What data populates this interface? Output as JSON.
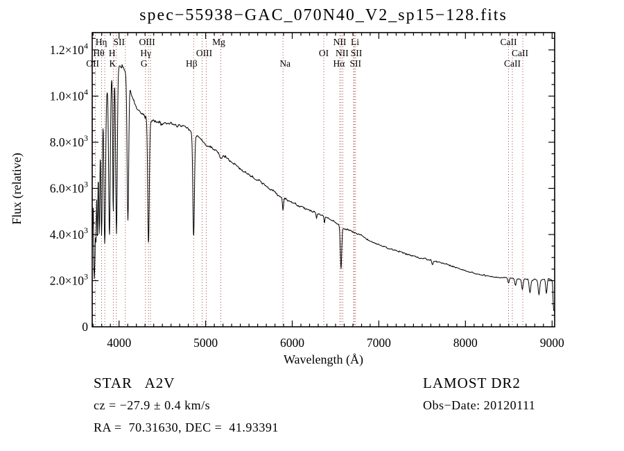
{
  "title": "spec−55938−GAC_070N40_V2_sp15−128.fits",
  "annotations": {
    "object_class": "STAR   A2V",
    "survey": "LAMOST DR2",
    "cz": "cz = −27.9 ± 0.4 km/s",
    "obs_date": "Obs−Date: 20120111",
    "ra_dec": "RA =  70.31630, DEC =  41.93391"
  },
  "chart_data": {
    "type": "line",
    "title": "spec−55938−GAC_070N40_V2_sp15−128.fits",
    "xlabel": "Wavelength (Å)",
    "ylabel": "Flux (relative)",
    "xlim": [
      3690,
      9030
    ],
    "ylim": [
      0,
      12750
    ],
    "x_major_ticks": [
      4000,
      5000,
      6000,
      7000,
      8000,
      9000
    ],
    "x_minor_step": 100,
    "y_major_ticks": [
      {
        "value": 0,
        "mantissa": "0",
        "exponent": ""
      },
      {
        "value": 2000,
        "mantissa": "2.0×10",
        "exponent": "3"
      },
      {
        "value": 4000,
        "mantissa": "4.0×10",
        "exponent": "3"
      },
      {
        "value": 6000,
        "mantissa": "6.0×10",
        "exponent": "3"
      },
      {
        "value": 8000,
        "mantissa": "8.0×10",
        "exponent": "3"
      },
      {
        "value": 10000,
        "mantissa": "1.0×10",
        "exponent": "4"
      },
      {
        "value": 12000,
        "mantissa": "1.2×10",
        "exponent": "4"
      }
    ],
    "y_minor_step": 500,
    "grid": false,
    "legend": "none",
    "colors": {
      "spectrum": "#000000",
      "markers": "#a34646",
      "axes": "#000000"
    },
    "marker_lines": [
      3727,
      3798,
      3835,
      3933,
      3969,
      4072,
      4305,
      4340,
      4363,
      4861,
      4959,
      5007,
      5175,
      5893,
      6364,
      6548,
      6563,
      6583,
      6708,
      6716,
      6731,
      8498,
      8542,
      8662
    ],
    "marker_labels": [
      {
        "text": "Hη",
        "wavelength": 3835,
        "row": 1,
        "dx": -5
      },
      {
        "text": "SII",
        "wavelength": 4072,
        "row": 1,
        "dx": -9
      },
      {
        "text": "OIII",
        "wavelength": 4363,
        "row": 1,
        "dx": -5
      },
      {
        "text": "Mg",
        "wavelength": 5175,
        "row": 1,
        "dx": -3
      },
      {
        "text": "NII",
        "wavelength": 6548,
        "row": 1,
        "dx": 0
      },
      {
        "text": "Li",
        "wavelength": 6708,
        "row": 1,
        "dx": 2
      },
      {
        "text": "CaII",
        "wavelength": 8498,
        "row": 1,
        "dx": 0
      },
      {
        "text": "Hθ",
        "wavelength": 3798,
        "row": 2,
        "dx": -4
      },
      {
        "text": "H",
        "wavelength": 3969,
        "row": 2,
        "dx": -6
      },
      {
        "text": "Hγ",
        "wavelength": 4340,
        "row": 2,
        "dx": -4
      },
      {
        "text": "OIII",
        "wavelength": 4983,
        "row": 2,
        "dx": 0
      },
      {
        "text": "OI",
        "wavelength": 6364,
        "row": 2,
        "dx": 0
      },
      {
        "text": "NII",
        "wavelength": 6583,
        "row": 2,
        "dx": -1
      },
      {
        "text": "SII",
        "wavelength": 6716,
        "row": 2,
        "dx": 3
      },
      {
        "text": "CaII",
        "wavelength": 8542,
        "row": 2,
        "dx": 11
      },
      {
        "text": "OII",
        "wavelength": 3727,
        "row": 3,
        "dx": -4
      },
      {
        "text": "K",
        "wavelength": 3933,
        "row": 3,
        "dx": -1
      },
      {
        "text": "G",
        "wavelength": 4305,
        "row": 3,
        "dx": -2
      },
      {
        "text": "Hβ",
        "wavelength": 4861,
        "row": 3,
        "dx": -3
      },
      {
        "text": "Na",
        "wavelength": 5893,
        "row": 3,
        "dx": 3
      },
      {
        "text": "Hα",
        "wavelength": 6563,
        "row": 3,
        "dx": -3
      },
      {
        "text": "SII",
        "wavelength": 6731,
        "row": 3,
        "dx": 0
      },
      {
        "text": "CaII",
        "wavelength": 8662,
        "row": 3,
        "dx": -15
      }
    ],
    "continuum": [
      [
        3690,
        3000
      ],
      [
        3696,
        4500
      ],
      [
        3703,
        5800
      ],
      [
        3712,
        7000
      ],
      [
        3722,
        7800
      ],
      [
        3735,
        8600
      ],
      [
        3755,
        9300
      ],
      [
        3780,
        9600
      ],
      [
        3830,
        9900
      ],
      [
        3870,
        10400
      ],
      [
        3910,
        10800
      ],
      [
        3950,
        11100
      ],
      [
        4000,
        11300
      ],
      [
        4060,
        11200
      ],
      [
        4100,
        10800
      ],
      [
        4140,
        10100
      ],
      [
        4200,
        9500
      ],
      [
        4300,
        9100
      ],
      [
        4400,
        8900
      ],
      [
        4500,
        8800
      ],
      [
        4600,
        8800
      ],
      [
        4700,
        8750
      ],
      [
        4800,
        8600
      ],
      [
        4900,
        8250
      ],
      [
        5000,
        7900
      ],
      [
        5100,
        7700
      ],
      [
        5200,
        7450
      ],
      [
        5300,
        7150
      ],
      [
        5400,
        6850
      ],
      [
        5500,
        6600
      ],
      [
        5600,
        6350
      ],
      [
        5700,
        6100
      ],
      [
        5800,
        5800
      ],
      [
        5900,
        5550
      ],
      [
        6000,
        5400
      ],
      [
        6100,
        5200
      ],
      [
        6200,
        5050
      ],
      [
        6300,
        4900
      ],
      [
        6400,
        4750
      ],
      [
        6500,
        4500
      ],
      [
        6600,
        4250
      ],
      [
        6700,
        4100
      ],
      [
        6800,
        3950
      ],
      [
        6900,
        3700
      ],
      [
        7000,
        3550
      ],
      [
        7100,
        3400
      ],
      [
        7200,
        3300
      ],
      [
        7300,
        3170
      ],
      [
        7400,
        3060
      ],
      [
        7500,
        2970
      ],
      [
        7600,
        2880
      ],
      [
        7700,
        2800
      ],
      [
        7800,
        2680
      ],
      [
        7900,
        2550
      ],
      [
        8000,
        2430
      ],
      [
        8100,
        2320
      ],
      [
        8200,
        2240
      ],
      [
        8300,
        2180
      ],
      [
        8400,
        2140
      ],
      [
        8500,
        2100
      ],
      [
        8600,
        2080
      ],
      [
        8700,
        2060
      ],
      [
        8800,
        2040
      ],
      [
        8900,
        2050
      ],
      [
        8960,
        2090
      ],
      [
        9000,
        2020
      ],
      [
        9006,
        1800
      ],
      [
        9012,
        1100
      ],
      [
        9018,
        720
      ],
      [
        9030,
        680
      ]
    ],
    "absorption_lines": [
      [
        3712,
        4300,
        5
      ],
      [
        3722,
        4100,
        5
      ],
      [
        3734,
        4600,
        5
      ],
      [
        3750,
        5100,
        6
      ],
      [
        3771,
        5500,
        7
      ],
      [
        3798,
        5800,
        8
      ],
      [
        3835,
        6400,
        9
      ],
      [
        3889,
        6600,
        9
      ],
      [
        3933,
        6100,
        6
      ],
      [
        3970,
        7100,
        9
      ],
      [
        4102,
        6100,
        9
      ],
      [
        4340,
        5400,
        9
      ],
      [
        4861,
        4500,
        9
      ],
      [
        5175,
        250,
        15
      ],
      [
        5893,
        480,
        6
      ],
      [
        6280,
        230,
        5
      ],
      [
        6371,
        260,
        5
      ],
      [
        6563,
        1800,
        8
      ],
      [
        7620,
        150,
        8
      ],
      [
        8497,
        200,
        7
      ],
      [
        8577,
        320,
        8
      ],
      [
        8657,
        440,
        8
      ],
      [
        8745,
        560,
        9
      ],
      [
        8849,
        640,
        9
      ],
      [
        8935,
        600,
        8
      ]
    ],
    "noise_amplitude": [
      [
        3690,
        190
      ],
      [
        4100,
        150
      ],
      [
        4800,
        105
      ],
      [
        6000,
        80
      ],
      [
        7000,
        60
      ],
      [
        8000,
        48
      ],
      [
        9030,
        40
      ]
    ]
  }
}
